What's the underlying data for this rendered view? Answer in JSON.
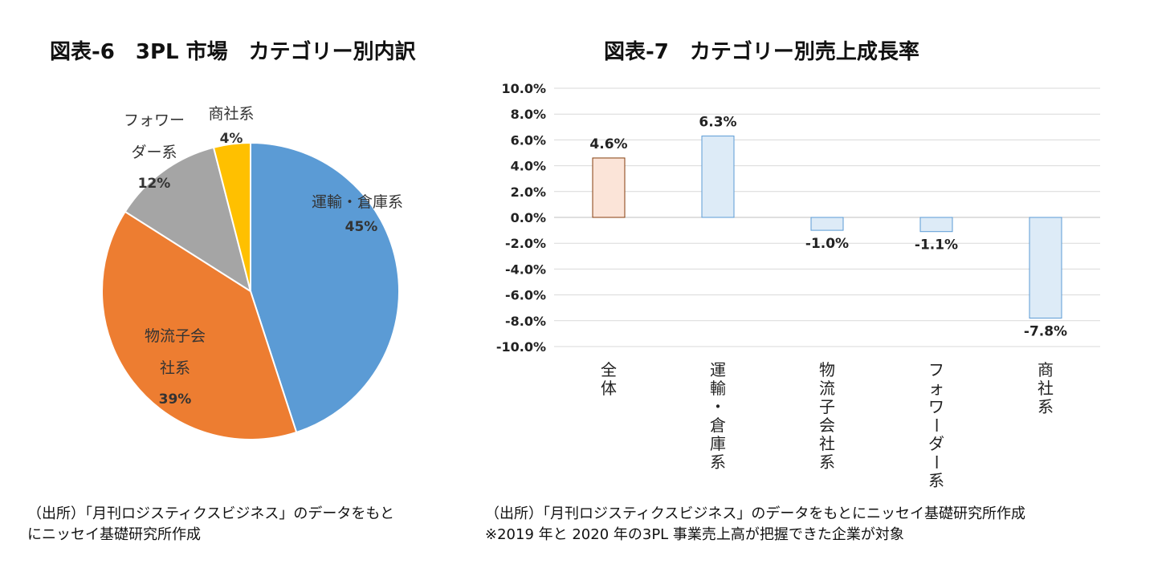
{
  "titles": {
    "left": "図表-6　3PL 市場　カテゴリー別内訳",
    "right": "図表-7　カテゴリー別売上成長率"
  },
  "sources": {
    "left_line1": "（出所）「月刊ロジスティクスビジネス」のデータをもと",
    "left_line2": "にニッセイ基礎研究所作成",
    "right_line1": "（出所）「月刊ロジスティクスビジネス」のデータをもとにニッセイ基礎研究所作成",
    "right_line2": "※2019 年と 2020 年の3PL 事業売上高が把握できた企業が対象"
  },
  "chart_data": [
    {
      "type": "pie",
      "title": "図表-6　3PL 市場　カテゴリー別内訳",
      "slices": [
        {
          "label": "運輸・倉庫系",
          "label_lines": [
            "運輸・倉庫系"
          ],
          "value": 45,
          "value_label": "45%",
          "color": "#5B9BD5"
        },
        {
          "label": "物流子会社系",
          "label_lines": [
            "物流子会",
            "社系"
          ],
          "value": 39,
          "value_label": "39%",
          "color": "#ED7D31"
        },
        {
          "label": "フォワーダー系",
          "label_lines": [
            "フォワー",
            "ダー系"
          ],
          "value": 12,
          "value_label": "12%",
          "color": "#A5A5A5"
        },
        {
          "label": "商社系",
          "label_lines": [
            "商社系"
          ],
          "value": 4,
          "value_label": "4%",
          "color": "#FFC000"
        }
      ],
      "start_angle_deg": 0,
      "direction": "clockwise"
    },
    {
      "type": "bar",
      "title": "図表-7　カテゴリー別売上成長率",
      "categories": [
        "全体",
        "運輸・倉庫系",
        "物流子会社系",
        "フォワーダー系",
        "商社系"
      ],
      "values": [
        4.6,
        6.3,
        -1.0,
        -1.1,
        -7.8
      ],
      "value_labels": [
        "4.6%",
        "6.3%",
        "-1.0%",
        "-1.1%",
        "-7.8%"
      ],
      "bar_colors": [
        "#FBE4D8",
        "#DDEBF7",
        "#DDEBF7",
        "#DDEBF7",
        "#DDEBF7"
      ],
      "bar_borders": [
        "#843C0C",
        "#5B9BD5",
        "#5B9BD5",
        "#5B9BD5",
        "#5B9BD5"
      ],
      "ylim": [
        -10,
        10
      ],
      "ytick_step": 2,
      "ytick_labels": [
        "10.0%",
        "8.0%",
        "6.0%",
        "4.0%",
        "2.0%",
        "0.0%",
        "-2.0%",
        "-4.0%",
        "-6.0%",
        "-8.0%",
        "-10.0%"
      ],
      "grid": true,
      "legend": "none",
      "xlabel": "",
      "ylabel": ""
    }
  ]
}
